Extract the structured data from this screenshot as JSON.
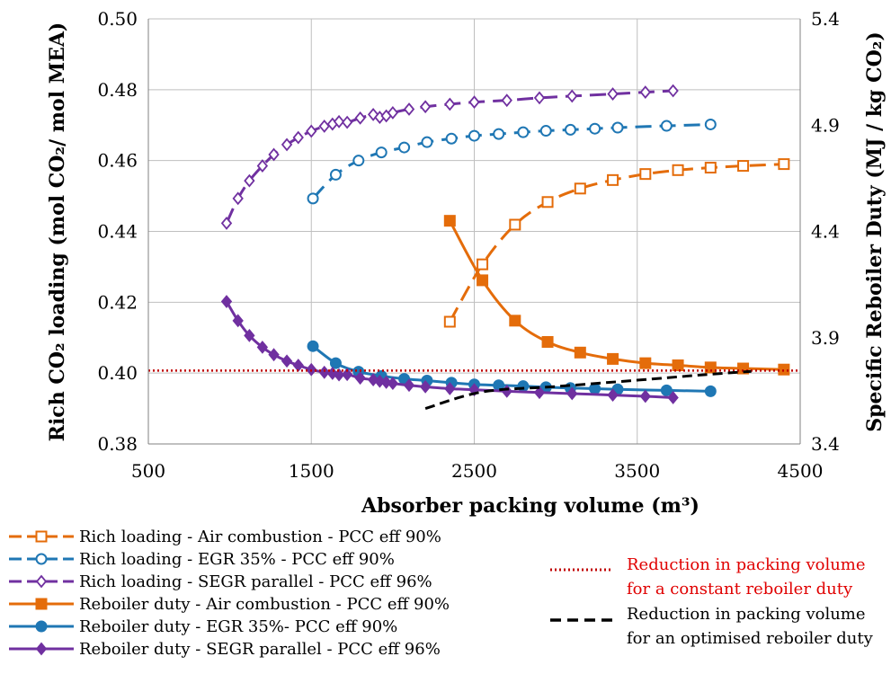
{
  "chart_data": {
    "type": "line",
    "xlabel": "Absorber packing volume (m³)",
    "ylabel_left": "Rich CO₂ loading (mol CO₂/ mol MEA)",
    "ylabel_right": "Specific Reboiler Duty (MJ / kg CO₂)",
    "xlim": [
      500,
      4500
    ],
    "ylim_left": [
      0.38,
      0.5
    ],
    "ylim_right": [
      3.4,
      5.4
    ],
    "x_ticks": [
      "500",
      "1500",
      "2500",
      "3500",
      "4500"
    ],
    "y_ticks_left": [
      "0.38",
      "0.40",
      "0.42",
      "0.44",
      "0.46",
      "0.48",
      "0.50"
    ],
    "y_ticks_right": [
      "3.4",
      "3.9",
      "4.4",
      "4.9",
      "5.4"
    ],
    "grid": true,
    "colors": {
      "orange": "#E46C0A",
      "blue": "#1F77B4",
      "purple": "#7030A0",
      "red": "#C00000",
      "black": "#000000"
    },
    "series": [
      {
        "name": "Rich loading - Air combustion - PCC eff 90%",
        "axis": "left",
        "color": "#E46C0A",
        "marker": "square-open",
        "dash": "long",
        "x": [
          2350,
          2550,
          2750,
          2950,
          3150,
          3350,
          3550,
          3750,
          3950,
          4150,
          4400
        ],
        "y": [
          0.4145,
          0.4307,
          0.4419,
          0.4483,
          0.4521,
          0.4545,
          0.4562,
          0.4573,
          0.458,
          0.4585,
          0.459
        ]
      },
      {
        "name": "Rich loading - EGR 35% - PCC eff  90%",
        "axis": "left",
        "color": "#1F77B4",
        "marker": "circle-open",
        "dash": "long",
        "x": [
          1510,
          1650,
          1790,
          1930,
          2070,
          2210,
          2360,
          2500,
          2650,
          2800,
          2940,
          3090,
          3240,
          3380,
          3680,
          3950
        ],
        "y": [
          0.4493,
          0.456,
          0.46,
          0.4623,
          0.4637,
          0.4652,
          0.4662,
          0.467,
          0.4675,
          0.468,
          0.4684,
          0.4687,
          0.469,
          0.4693,
          0.4698,
          0.4702
        ]
      },
      {
        "name": "Rich loading - SEGR parallel - PCC eff 96%",
        "axis": "left",
        "color": "#7030A0",
        "marker": "diamond-open",
        "dash": "long",
        "x": [
          980,
          1050,
          1120,
          1200,
          1270,
          1350,
          1420,
          1500,
          1580,
          1630,
          1670,
          1720,
          1800,
          1880,
          1920,
          1960,
          2000,
          2100,
          2200,
          2350,
          2500,
          2700,
          2900,
          3100,
          3350,
          3550,
          3720
        ],
        "y": [
          0.4423,
          0.4493,
          0.4543,
          0.4585,
          0.4617,
          0.4645,
          0.4665,
          0.4683,
          0.4697,
          0.4703,
          0.471,
          0.4708,
          0.472,
          0.473,
          0.4722,
          0.4726,
          0.4735,
          0.4745,
          0.4752,
          0.4759,
          0.4765,
          0.477,
          0.4777,
          0.4782,
          0.4788,
          0.4793,
          0.4797
        ]
      },
      {
        "name": "Reboiler duty - Air combustion - PCC eff 90%",
        "axis": "right",
        "color": "#E46C0A",
        "marker": "square",
        "dash": "solid",
        "x": [
          2350,
          2550,
          2750,
          2950,
          3150,
          3350,
          3550,
          3750,
          3950,
          4150,
          4400
        ],
        "y": [
          4.45,
          4.17,
          3.98,
          3.88,
          3.83,
          3.8,
          3.78,
          3.77,
          3.76,
          3.755,
          3.75
        ]
      },
      {
        "name": "Reboiler duty - EGR 35%- PCC eff 90%",
        "axis": "right",
        "color": "#1F77B4",
        "marker": "circle",
        "dash": "solid",
        "x": [
          1510,
          1650,
          1790,
          1930,
          2070,
          2210,
          2360,
          2500,
          2650,
          2800,
          2940,
          3090,
          3240,
          3380,
          3680,
          3950
        ],
        "y": [
          3.86,
          3.78,
          3.74,
          3.72,
          3.706,
          3.698,
          3.688,
          3.68,
          3.676,
          3.672,
          3.667,
          3.663,
          3.66,
          3.657,
          3.652,
          3.648
        ]
      },
      {
        "name": "Reboiler duty - SEGR parallel - PCC eff 96%",
        "axis": "right",
        "color": "#7030A0",
        "marker": "diamond",
        "dash": "solid",
        "x": [
          980,
          1050,
          1120,
          1200,
          1270,
          1350,
          1420,
          1500,
          1580,
          1630,
          1670,
          1720,
          1800,
          1880,
          1920,
          1960,
          2000,
          2100,
          2200,
          2350,
          2500,
          2700,
          2900,
          3100,
          3350,
          3550,
          3720
        ],
        "y": [
          4.07,
          3.98,
          3.91,
          3.855,
          3.82,
          3.79,
          3.77,
          3.75,
          3.737,
          3.732,
          3.725,
          3.727,
          3.71,
          3.702,
          3.695,
          3.69,
          3.685,
          3.676,
          3.669,
          3.66,
          3.655,
          3.648,
          3.642,
          3.637,
          3.63,
          3.624,
          3.618
        ]
      },
      {
        "name": "Reduction in packing volume for a constant reboiler duty",
        "axis": "left",
        "color": "#C00000",
        "marker": "none",
        "dash": "dotted",
        "x": [
          500,
          4500
        ],
        "y": [
          0.4007,
          0.4007
        ]
      },
      {
        "name": "Reduction in packing volume for an optimised reboiler duty",
        "axis": "left",
        "color": "#000000",
        "marker": "none",
        "dash": "dashed",
        "x": [
          2200,
          2550,
          3000,
          3500,
          3900,
          4200
        ],
        "y": [
          0.39,
          0.3947,
          0.3962,
          0.398,
          0.3995,
          0.4005
        ]
      }
    ]
  },
  "legend": {
    "left": [
      "Rich loading - Air combustion - PCC eff 90%",
      "Rich loading - EGR 35% - PCC eff  90%",
      "Rich loading - SEGR parallel - PCC eff 96%",
      "Reboiler duty - Air combustion - PCC eff 90%",
      "Reboiler duty - EGR 35%- PCC eff 90%",
      "Reboiler duty - SEGR parallel - PCC eff 96%"
    ],
    "right": [
      {
        "line1": "Reduction in packing volume",
        "line2": "for a constant reboiler duty"
      },
      {
        "line1": "Reduction in packing volume",
        "line2": "for an optimised reboiler duty"
      }
    ]
  }
}
